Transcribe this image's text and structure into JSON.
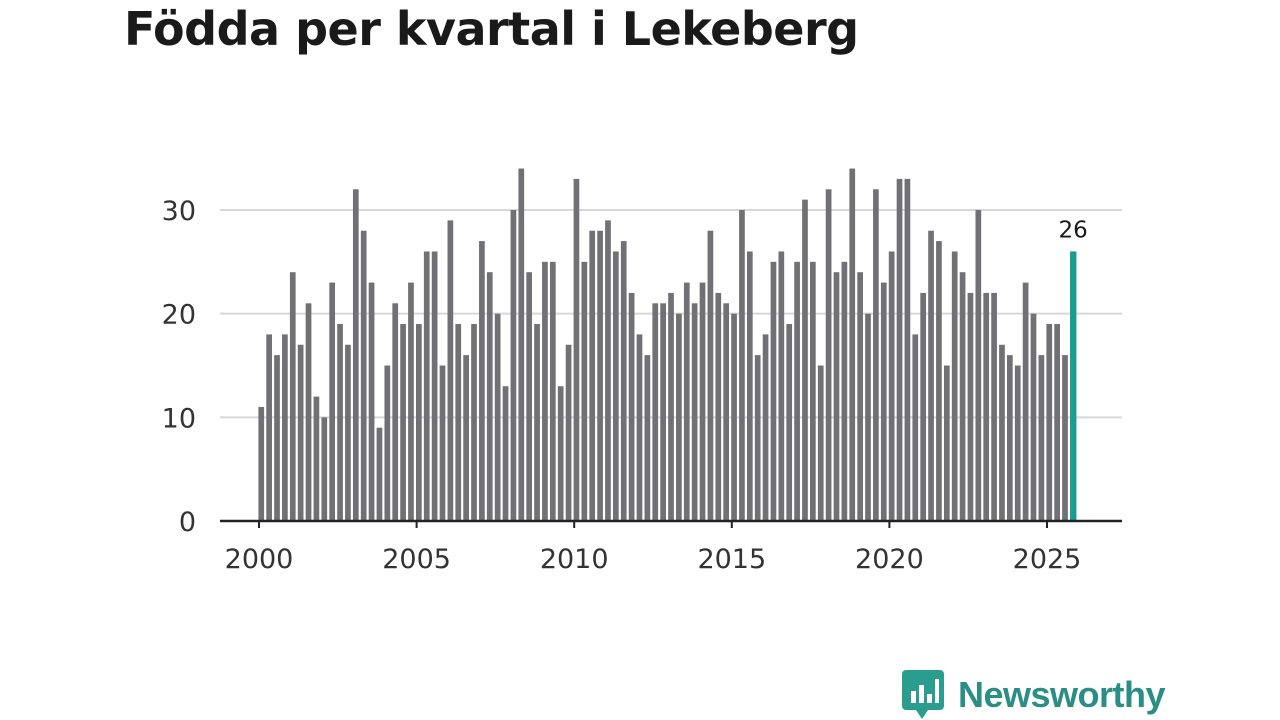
{
  "title": "Födda per kvartal i Lekeberg",
  "brand": {
    "name": "Newsworthy",
    "color": "#2a9d8f",
    "icon": "bar-chart-speech-bubble-icon"
  },
  "colors": {
    "bar": "#717075",
    "highlight": "#1a9c8f",
    "grid": "#d8d8d8",
    "axis": "#222222"
  },
  "chart_data": {
    "type": "bar",
    "title": "Födda per kvartal i Lekeberg",
    "xlabel": "",
    "ylabel": "",
    "ylim": [
      0,
      34
    ],
    "yticks": [
      0,
      10,
      20,
      30
    ],
    "xticks": [
      2000,
      2005,
      2010,
      2015,
      2020,
      2025
    ],
    "start_year": 2000,
    "start_quarter": 1,
    "values": [
      11,
      18,
      16,
      18,
      24,
      17,
      21,
      12,
      10,
      23,
      19,
      17,
      32,
      28,
      23,
      9,
      15,
      21,
      19,
      23,
      19,
      26,
      26,
      15,
      29,
      19,
      16,
      19,
      27,
      24,
      20,
      13,
      30,
      34,
      24,
      19,
      25,
      25,
      13,
      17,
      33,
      25,
      28,
      28,
      29,
      26,
      27,
      22,
      18,
      16,
      21,
      21,
      22,
      20,
      23,
      21,
      23,
      28,
      22,
      21,
      20,
      30,
      26,
      16,
      18,
      25,
      26,
      19,
      25,
      31,
      25,
      15,
      32,
      24,
      25,
      34,
      24,
      20,
      32,
      23,
      26,
      33,
      33,
      18,
      22,
      28,
      27,
      15,
      26,
      24,
      22,
      30,
      22,
      22,
      17,
      16,
      15,
      23,
      20,
      16,
      19,
      19,
      16,
      26
    ],
    "highlight_last": true,
    "annotation": {
      "text": "26"
    }
  }
}
